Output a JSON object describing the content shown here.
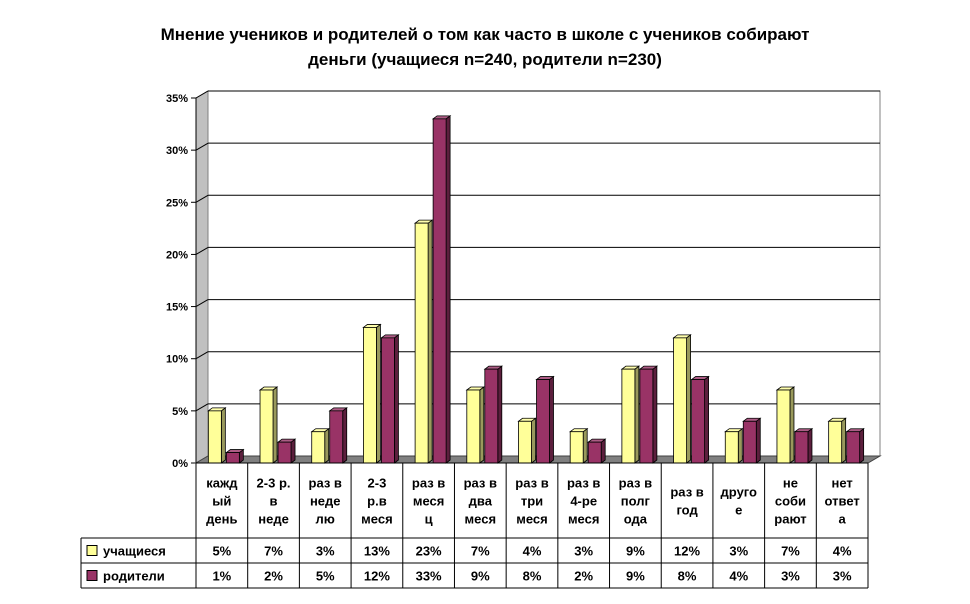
{
  "title_lines": [
    "Мнение учеников и родителей о том как часто в школе с учеников собирают",
    "деньги (учащиеся n=240, родители n=230)"
  ],
  "chart_data": {
    "type": "bar",
    "title": "Мнение учеников и родителей о том как часто в школе с учеников собирают деньги (учащиеся n=240, родители n=230)",
    "categories": [
      [
        "кажд",
        "ый",
        "день"
      ],
      [
        "2-3 р.",
        "в",
        "неде"
      ],
      [
        "раз в",
        "неде",
        "лю"
      ],
      [
        "2-3",
        "р.в",
        "меся"
      ],
      [
        "раз в",
        "меся",
        "ц"
      ],
      [
        "раз в",
        "два",
        "меся"
      ],
      [
        "раз в",
        "три",
        "меся"
      ],
      [
        "раз в",
        "4-ре",
        "меся"
      ],
      [
        "раз в",
        "полг",
        "ода"
      ],
      [
        "раз в",
        "год"
      ],
      [
        "друго",
        "е"
      ],
      [
        "не",
        "соби",
        "рают"
      ],
      [
        "нет",
        "ответ",
        "а"
      ]
    ],
    "series": [
      {
        "name": "учащиеся",
        "color": "#ffff99",
        "values": [
          5,
          7,
          3,
          13,
          23,
          7,
          4,
          3,
          9,
          12,
          3,
          7,
          4
        ],
        "table_labels": [
          "5%",
          "7%",
          "3%",
          "13%",
          "23%",
          "7%",
          "4%",
          "3%",
          "9%",
          "12%",
          "3%",
          "7%",
          "4%"
        ]
      },
      {
        "name": "родители",
        "color": "#993366",
        "values": [
          1,
          2,
          5,
          12,
          33,
          9,
          8,
          2,
          9,
          8,
          4,
          3,
          3
        ],
        "table_labels": [
          "1%",
          "2%",
          "5%",
          "12%",
          "33%",
          "9%",
          "8%",
          "2%",
          "9%",
          "8%",
          "4%",
          "3%",
          "3%"
        ]
      }
    ],
    "yticks": [
      "0%",
      "5%",
      "10%",
      "15%",
      "20%",
      "25%",
      "30%",
      "35%"
    ],
    "ylim": [
      0,
      35
    ],
    "grid": true,
    "legend": "data-table"
  }
}
